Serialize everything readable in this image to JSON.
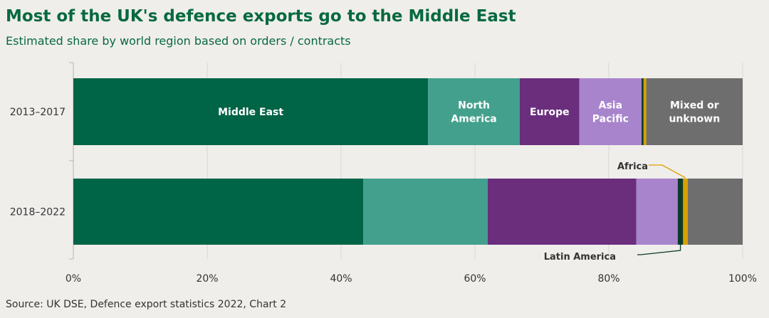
{
  "title": "Most of the UK's defence exports go to the Middle East",
  "subtitle": "Estimated share by world region based on orders / contracts",
  "source": "Source: UK DSE, Defence export statistics 2022, Chart 2",
  "chart_data": {
    "type": "bar",
    "orientation": "horizontal",
    "stacked": true,
    "categories": [
      "2013–2017",
      "2018–2022"
    ],
    "xlim": [
      0,
      100
    ],
    "xticks": [
      "0%",
      "20%",
      "40%",
      "60%",
      "80%",
      "100%"
    ],
    "grid": true,
    "series": [
      {
        "name": "Middle East",
        "values": [
          53,
          43.3
        ],
        "color": "#006446",
        "label": "Middle East"
      },
      {
        "name": "North America",
        "values": [
          13.7,
          18.6
        ],
        "color": "#43a08d",
        "label": "North America"
      },
      {
        "name": "Europe",
        "values": [
          8.9,
          22.2
        ],
        "color": "#6a2e7d",
        "label": "Europe"
      },
      {
        "name": "Asia Pacific",
        "values": [
          9.3,
          6.2
        ],
        "color": "#a884cc",
        "label": "Asia Pacific"
      },
      {
        "name": "Latin America",
        "values": [
          0.3,
          0.8
        ],
        "color": "#0c3b2a",
        "label": ""
      },
      {
        "name": "Africa",
        "values": [
          0.4,
          0.7
        ],
        "color": "#d9a000",
        "label": ""
      },
      {
        "name": "Mixed or unknown",
        "values": [
          14.4,
          8.2
        ],
        "color": "#6e6e6e",
        "label": "Mixed or unknown"
      }
    ],
    "annotations": {
      "africa": "Africa",
      "latin_america": "Latin America"
    }
  }
}
